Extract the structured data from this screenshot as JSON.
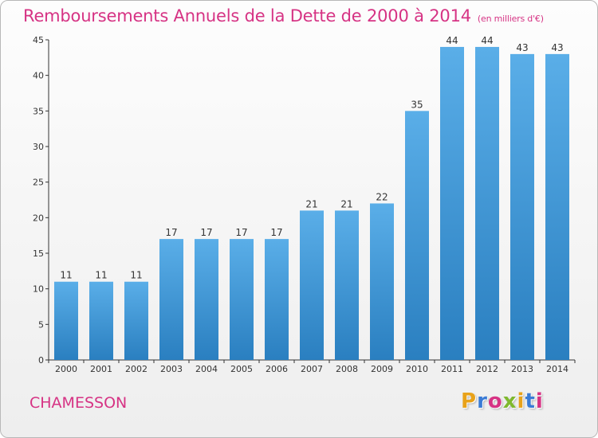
{
  "chart_data": {
    "type": "bar",
    "title": "Remboursements Annuels de la Dette de 2000 à 2014",
    "subtitle": "(en milliers d'€)",
    "categories": [
      "2000",
      "2001",
      "2002",
      "2003",
      "2004",
      "2005",
      "2006",
      "2007",
      "2008",
      "2009",
      "2010",
      "2011",
      "2012",
      "2013",
      "2014"
    ],
    "values": [
      11,
      11,
      11,
      17,
      17,
      17,
      17,
      21,
      21,
      22,
      35,
      44,
      44,
      43,
      43
    ],
    "ylim": [
      0,
      45
    ],
    "yticks": [
      0,
      5,
      10,
      15,
      20,
      25,
      30,
      35,
      40,
      45
    ],
    "grid": false,
    "colors": {
      "bar_top": "#5aaee8",
      "bar_bottom": "#2a7fc0",
      "title": "#d63384"
    }
  },
  "footer": {
    "place": "CHAMESSON",
    "logo": [
      "P",
      "r",
      "o",
      "x",
      "i",
      "t",
      "i"
    ],
    "logo_colors": [
      "#e8a21a",
      "#3a7bd5",
      "#d63384",
      "#7fb82e",
      "#e8a21a",
      "#3a7bd5",
      "#d63384"
    ]
  }
}
